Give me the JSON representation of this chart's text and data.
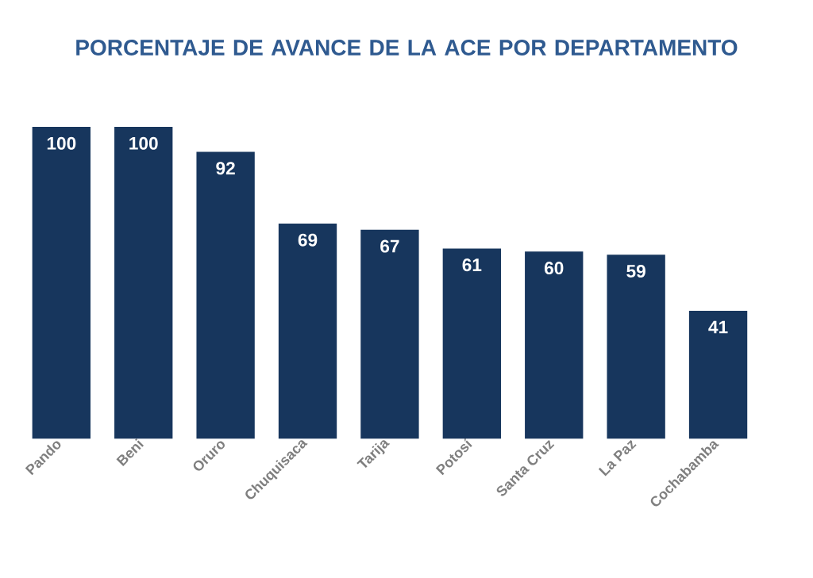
{
  "chart_data": {
    "type": "bar",
    "title": "PORCENTAJE DE AVANCE DE LA ACE POR DEPARTAMENTO",
    "categories": [
      "Pando",
      "Beni",
      "Oruro",
      "Chuquisaca",
      "Tarija",
      "Potosí",
      "Santa Cruz",
      "La Paz",
      "Cochabamba"
    ],
    "values": [
      100,
      100,
      92,
      69,
      67,
      61,
      60,
      59,
      41
    ],
    "color": "#17365d",
    "data_labels": true
  }
}
